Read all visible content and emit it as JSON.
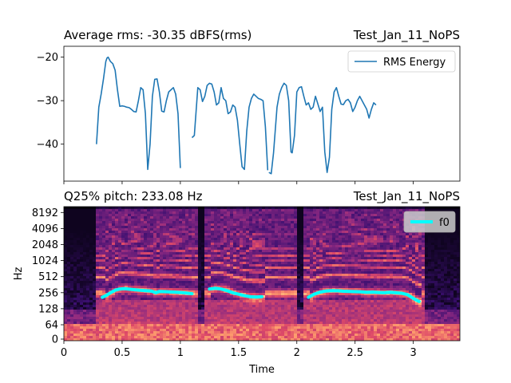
{
  "chart_data": [
    {
      "type": "line",
      "title_left": "Average rms: -30.35  dBFS(rms)",
      "title_right": "Test_Jan_11_NoPS",
      "xlabel": "",
      "ylabel": "",
      "xlim": [
        0,
        3.4
      ],
      "ylim": [
        -48.5,
        -17.5
      ],
      "yticks": [
        -20,
        -30,
        -40
      ],
      "legend": {
        "position": "top-right",
        "entries": [
          "RMS Energy"
        ]
      },
      "colors": {
        "rms": "#1f77b4"
      },
      "series": [
        {
          "name": "RMS Energy",
          "segments": [
            [
              [
                0.28,
                -40
              ],
              [
                0.3,
                -31.5
              ],
              [
                0.32,
                -28.5
              ],
              [
                0.34,
                -25
              ],
              [
                0.36,
                -21
              ],
              [
                0.37,
                -20.2
              ],
              [
                0.38,
                -20
              ],
              [
                0.4,
                -21
              ],
              [
                0.42,
                -21.5
              ],
              [
                0.44,
                -23
              ],
              [
                0.46,
                -27.5
              ],
              [
                0.48,
                -31.3
              ],
              [
                0.5,
                -31.2
              ],
              [
                0.52,
                -31.3
              ],
              [
                0.54,
                -31.5
              ],
              [
                0.56,
                -31.6
              ],
              [
                0.58,
                -32
              ],
              [
                0.6,
                -32.5
              ],
              [
                0.62,
                -32.6
              ],
              [
                0.64,
                -30
              ],
              [
                0.66,
                -27
              ],
              [
                0.68,
                -27.5
              ],
              [
                0.7,
                -33
              ],
              [
                0.72,
                -45.8
              ],
              [
                0.74,
                -40
              ],
              [
                0.76,
                -29
              ],
              [
                0.78,
                -25.1
              ],
              [
                0.8,
                -25
              ],
              [
                0.82,
                -28
              ],
              [
                0.84,
                -32.4
              ],
              [
                0.86,
                -32.6
              ],
              [
                0.88,
                -30
              ],
              [
                0.9,
                -28
              ],
              [
                0.92,
                -27.5
              ],
              [
                0.94,
                -27
              ],
              [
                0.96,
                -28.5
              ],
              [
                0.98,
                -33
              ],
              [
                1.0,
                -45.5
              ]
            ],
            [
              [
                1.1,
                -38.5
              ],
              [
                1.12,
                -38
              ],
              [
                1.15,
                -27
              ],
              [
                1.17,
                -27.5
              ],
              [
                1.19,
                -30.2
              ],
              [
                1.21,
                -29
              ],
              [
                1.23,
                -26.5
              ],
              [
                1.25,
                -26
              ],
              [
                1.27,
                -26.2
              ],
              [
                1.29,
                -28
              ],
              [
                1.31,
                -31
              ],
              [
                1.33,
                -30.5
              ],
              [
                1.35,
                -27
              ],
              [
                1.37,
                -29.5
              ],
              [
                1.39,
                -30
              ],
              [
                1.41,
                -33
              ],
              [
                1.43,
                -32.6
              ],
              [
                1.45,
                -31
              ],
              [
                1.47,
                -31.5
              ],
              [
                1.49,
                -34.5
              ],
              [
                1.51,
                -40
              ],
              [
                1.53,
                -45.2
              ],
              [
                1.55,
                -45.8
              ],
              [
                1.57,
                -37
              ],
              [
                1.59,
                -31.5
              ],
              [
                1.61,
                -29.5
              ],
              [
                1.63,
                -28.5
              ],
              [
                1.65,
                -29
              ],
              [
                1.67,
                -29.5
              ],
              [
                1.69,
                -29.7
              ],
              [
                1.71,
                -30
              ],
              [
                1.73,
                -36
              ],
              [
                1.75,
                -46
              ]
            ],
            [
              [
                1.76,
                -46.5
              ],
              [
                1.78,
                -46.8
              ],
              [
                1.8,
                -42
              ],
              [
                1.83,
                -31.5
              ],
              [
                1.85,
                -28.5
              ],
              [
                1.87,
                -27
              ],
              [
                1.89,
                -26
              ],
              [
                1.91,
                -26.5
              ],
              [
                1.93,
                -30
              ],
              [
                1.95,
                -41.8
              ],
              [
                1.96,
                -42
              ],
              [
                1.98,
                -38
              ],
              [
                2.0,
                -28
              ],
              [
                2.02,
                -27
              ],
              [
                2.04,
                -26.8
              ],
              [
                2.06,
                -29
              ],
              [
                2.08,
                -31
              ],
              [
                2.1,
                -30.5
              ],
              [
                2.12,
                -32
              ],
              [
                2.14,
                -31.5
              ],
              [
                2.16,
                -29
              ],
              [
                2.18,
                -30.7
              ],
              [
                2.2,
                -32.5
              ],
              [
                2.22,
                -31.5
              ],
              [
                2.24,
                -41.8
              ],
              [
                2.26,
                -46.5
              ],
              [
                2.28,
                -43
              ],
              [
                2.3,
                -32
              ],
              [
                2.32,
                -28
              ],
              [
                2.34,
                -27
              ],
              [
                2.36,
                -29
              ],
              [
                2.38,
                -30.8
              ],
              [
                2.4,
                -30.9
              ],
              [
                2.42,
                -30
              ],
              [
                2.44,
                -29.7
              ],
              [
                2.46,
                -30.5
              ],
              [
                2.48,
                -32.5
              ],
              [
                2.5,
                -31.5
              ],
              [
                2.52,
                -30
              ],
              [
                2.54,
                -29
              ],
              [
                2.56,
                -30
              ],
              [
                2.58,
                -31
              ],
              [
                2.6,
                -32
              ],
              [
                2.62,
                -34
              ],
              [
                2.64,
                -32
              ],
              [
                2.66,
                -30.5
              ],
              [
                2.68,
                -31
              ]
            ]
          ]
        }
      ]
    },
    {
      "type": "heatmap",
      "title_left": "Q25% pitch: 233.08  Hz",
      "title_right": "Test_Jan_11_NoPS",
      "xlabel": "Time",
      "ylabel": "Hz",
      "xlim": [
        0,
        3.4
      ],
      "xticks": [
        0,
        0.5,
        1,
        1.5,
        2,
        2.5,
        3
      ],
      "yticks": [
        "0",
        "64",
        "128",
        "256",
        "512",
        "1024",
        "2048",
        "4096",
        "8192"
      ],
      "legend": {
        "position": "top-right",
        "entries": [
          "f0"
        ]
      },
      "colors": {
        "f0": "#00ffff",
        "background": "#000004"
      },
      "series": [
        {
          "name": "f0",
          "segments": [
            [
              [
                0.33,
                210
              ],
              [
                0.36,
                225
              ],
              [
                0.4,
                255
              ],
              [
                0.44,
                285
              ],
              [
                0.48,
                300
              ],
              [
                0.52,
                305
              ],
              [
                0.56,
                298
              ],
              [
                0.6,
                292
              ],
              [
                0.65,
                285
              ],
              [
                0.7,
                280
              ],
              [
                0.75,
                275
              ],
              [
                0.79,
                255
              ],
              [
                0.82,
                270
              ],
              [
                0.86,
                268
              ],
              [
                0.9,
                265
              ],
              [
                0.95,
                262
              ],
              [
                1.0,
                258
              ],
              [
                1.05,
                252
              ],
              [
                1.1,
                245
              ]
            ],
            [
              [
                1.25,
                300
              ],
              [
                1.3,
                310
              ],
              [
                1.35,
                300
              ],
              [
                1.4,
                280
              ],
              [
                1.45,
                255
              ],
              [
                1.5,
                240
              ],
              [
                1.55,
                225
              ],
              [
                1.6,
                215
              ],
              [
                1.65,
                212
              ],
              [
                1.7,
                215
              ]
            ],
            [
              [
                2.1,
                210
              ],
              [
                2.15,
                240
              ],
              [
                2.2,
                262
              ],
              [
                2.25,
                275
              ],
              [
                2.3,
                280
              ],
              [
                2.35,
                278
              ],
              [
                2.4,
                272
              ],
              [
                2.45,
                270
              ],
              [
                2.5,
                268
              ],
              [
                2.55,
                265
              ],
              [
                2.6,
                260
              ],
              [
                2.65,
                262
              ],
              [
                2.7,
                258
              ],
              [
                2.75,
                255
              ],
              [
                2.8,
                260
              ],
              [
                2.85,
                255
              ],
              [
                2.9,
                250
              ],
              [
                2.95,
                235
              ],
              [
                3.0,
                200
              ],
              [
                3.05,
                175
              ]
            ]
          ]
        }
      ]
    }
  ]
}
